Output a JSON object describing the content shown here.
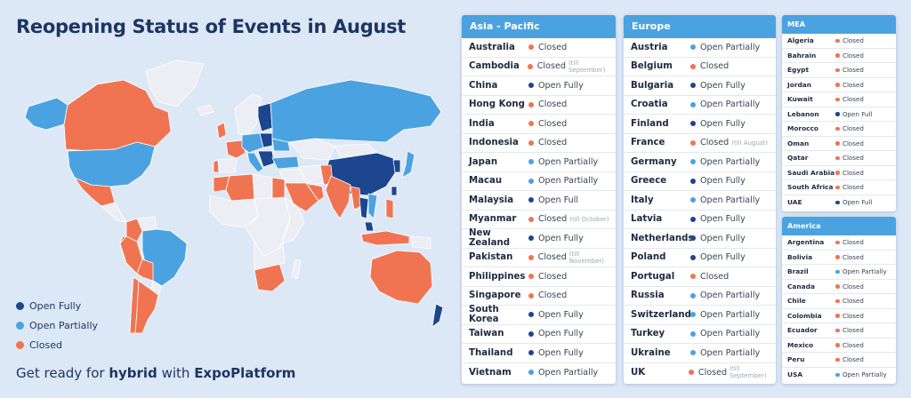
{
  "title": "Reopening Status of Events in August",
  "footer": {
    "prefix": "Get ready for ",
    "bold1": "hybrid",
    "middle": " with ",
    "bold2": "ExpoPlatform"
  },
  "colors": {
    "open_fully": "#1c468d",
    "open_partially": "#4aa3e0",
    "closed": "#f07451",
    "no_data": "#eceef3",
    "background": "#dde8f7"
  },
  "legend": [
    {
      "label": "Open Fully",
      "status": "open_fully"
    },
    {
      "label": "Open Partially",
      "status": "open_partially"
    },
    {
      "label": "Closed",
      "status": "closed"
    }
  ],
  "panels": [
    {
      "id": "asia",
      "title": "Asia - Pacific",
      "size": "big",
      "rows": [
        {
          "country": "Australia",
          "status": "closed",
          "text": "Closed",
          "note": ""
        },
        {
          "country": "Cambodia",
          "status": "closed",
          "text": "Closed",
          "note": "(till September)"
        },
        {
          "country": "China",
          "status": "open_fully",
          "text": "Open Fully",
          "note": ""
        },
        {
          "country": "Hong Kong",
          "status": "closed",
          "text": "Closed",
          "note": ""
        },
        {
          "country": "India",
          "status": "closed",
          "text": "Closed",
          "note": ""
        },
        {
          "country": "Indonesia",
          "status": "closed",
          "text": "Closed",
          "note": ""
        },
        {
          "country": "Japan",
          "status": "open_partially",
          "text": "Open Partially",
          "note": ""
        },
        {
          "country": "Macau",
          "status": "open_partially",
          "text": "Open Partially",
          "note": ""
        },
        {
          "country": "Malaysia",
          "status": "open_fully",
          "text": "Open Full",
          "note": ""
        },
        {
          "country": "Myanmar",
          "status": "closed",
          "text": "Closed",
          "note": "(till October)"
        },
        {
          "country": "New Zealand",
          "status": "open_fully",
          "text": "Open Fully",
          "note": ""
        },
        {
          "country": "Pakistan",
          "status": "closed",
          "text": "Closed",
          "note": "(till November)"
        },
        {
          "country": "Philippines",
          "status": "closed",
          "text": "Closed",
          "note": ""
        },
        {
          "country": "Singapore",
          "status": "closed",
          "text": "Closed",
          "note": ""
        },
        {
          "country": "South Korea",
          "status": "open_fully",
          "text": "Open Fully",
          "note": ""
        },
        {
          "country": "Taiwan",
          "status": "open_fully",
          "text": "Open Fully",
          "note": ""
        },
        {
          "country": "Thailand",
          "status": "open_fully",
          "text": "Open Fully",
          "note": ""
        },
        {
          "country": "Vietnam",
          "status": "open_partially",
          "text": "Open Partially",
          "note": ""
        }
      ]
    },
    {
      "id": "europe",
      "title": "Europe",
      "size": "big",
      "rows": [
        {
          "country": "Austria",
          "status": "open_partially",
          "text": "Open Partially",
          "note": ""
        },
        {
          "country": "Belgium",
          "status": "closed",
          "text": "Closed",
          "note": ""
        },
        {
          "country": "Bulgaria",
          "status": "open_fully",
          "text": "Open Fully",
          "note": ""
        },
        {
          "country": "Croatia",
          "status": "open_partially",
          "text": "Open Partially",
          "note": ""
        },
        {
          "country": "Finland",
          "status": "open_fully",
          "text": "Open Fully",
          "note": ""
        },
        {
          "country": "France",
          "status": "closed",
          "text": "Closed",
          "note": "(till August)"
        },
        {
          "country": "Germany",
          "status": "open_partially",
          "text": "Open Partially",
          "note": ""
        },
        {
          "country": "Greece",
          "status": "open_fully",
          "text": "Open Fully",
          "note": ""
        },
        {
          "country": "Italy",
          "status": "open_partially",
          "text": "Open Partially",
          "note": ""
        },
        {
          "country": "Latvia",
          "status": "open_fully",
          "text": "Open Fully",
          "note": ""
        },
        {
          "country": "Netherlands",
          "status": "open_fully",
          "text": "Open Fully",
          "note": ""
        },
        {
          "country": "Poland",
          "status": "open_fully",
          "text": "Open Fully",
          "note": ""
        },
        {
          "country": "Portugal",
          "status": "closed",
          "text": "Closed",
          "note": ""
        },
        {
          "country": "Russia",
          "status": "open_partially",
          "text": "Open Partially",
          "note": ""
        },
        {
          "country": "Switzerland",
          "status": "open_partially",
          "text": "Open Partially",
          "note": ""
        },
        {
          "country": "Turkey",
          "status": "open_partially",
          "text": "Open Partially",
          "note": ""
        },
        {
          "country": "Ukraine",
          "status": "open_partially",
          "text": "Open Partially",
          "note": ""
        },
        {
          "country": "UK",
          "status": "closed",
          "text": "Closed",
          "note": "(till September)"
        }
      ]
    },
    {
      "id": "mea",
      "title": "MEA",
      "size": "small",
      "rows": [
        {
          "country": "Algeria",
          "status": "closed",
          "text": "Closed",
          "note": ""
        },
        {
          "country": "Bahrain",
          "status": "closed",
          "text": "Closed",
          "note": ""
        },
        {
          "country": "Egypt",
          "status": "closed",
          "text": "Closed",
          "note": ""
        },
        {
          "country": "Jordan",
          "status": "closed",
          "text": "Closed",
          "note": ""
        },
        {
          "country": "Kuwait",
          "status": "closed",
          "text": "Closed",
          "note": ""
        },
        {
          "country": "Lebanon",
          "status": "open_fully",
          "text": "Open Full",
          "note": ""
        },
        {
          "country": "Morocco",
          "status": "closed",
          "text": "Closed",
          "note": ""
        },
        {
          "country": "Oman",
          "status": "closed",
          "text": "Closed",
          "note": ""
        },
        {
          "country": "Qatar",
          "status": "closed",
          "text": "Closed",
          "note": ""
        },
        {
          "country": "Saudi Arabia",
          "status": "closed",
          "text": "Closed",
          "note": ""
        },
        {
          "country": "South Africa",
          "status": "closed",
          "text": "Closed",
          "note": ""
        },
        {
          "country": "UAE",
          "status": "open_fully",
          "text": "Open Full",
          "note": ""
        }
      ]
    },
    {
      "id": "america",
      "title": "America",
      "size": "small",
      "rows": [
        {
          "country": "Argentina",
          "status": "closed",
          "text": "Closed",
          "note": ""
        },
        {
          "country": "Bolivia",
          "status": "closed",
          "text": "Closed",
          "note": ""
        },
        {
          "country": "Brazil",
          "status": "open_partially",
          "text": "Open Partially",
          "note": ""
        },
        {
          "country": "Canada",
          "status": "closed",
          "text": "Closed",
          "note": ""
        },
        {
          "country": "Chile",
          "status": "closed",
          "text": "Closed",
          "note": ""
        },
        {
          "country": "Colombia",
          "status": "closed",
          "text": "Closed",
          "note": ""
        },
        {
          "country": "Ecuador",
          "status": "closed",
          "text": "Closed",
          "note": ""
        },
        {
          "country": "Mexico",
          "status": "closed",
          "text": "Closed",
          "note": ""
        },
        {
          "country": "Peru",
          "status": "closed",
          "text": "Closed",
          "note": ""
        },
        {
          "country": "USA",
          "status": "open_partially",
          "text": "Open Partially",
          "note": ""
        }
      ]
    }
  ],
  "map_regions": [
    {
      "name": "alaska",
      "status": "open_partially"
    },
    {
      "name": "canada",
      "status": "closed"
    },
    {
      "name": "greenland",
      "status": "no_data"
    },
    {
      "name": "usa",
      "status": "open_partially"
    },
    {
      "name": "mexico",
      "status": "closed"
    },
    {
      "name": "central-america",
      "status": "no_data"
    },
    {
      "name": "colombia",
      "status": "closed"
    },
    {
      "name": "venezuela",
      "status": "no_data"
    },
    {
      "name": "ecuador",
      "status": "closed"
    },
    {
      "name": "peru",
      "status": "closed"
    },
    {
      "name": "brazil",
      "status": "open_partially"
    },
    {
      "name": "bolivia",
      "status": "closed"
    },
    {
      "name": "paraguay",
      "status": "no_data"
    },
    {
      "name": "chile",
      "status": "closed"
    },
    {
      "name": "argentina",
      "status": "closed"
    },
    {
      "name": "iceland",
      "status": "no_data"
    },
    {
      "name": "uk",
      "status": "closed"
    },
    {
      "name": "portugal",
      "status": "closed"
    },
    {
      "name": "spain",
      "status": "no_data"
    },
    {
      "name": "france",
      "status": "closed"
    },
    {
      "name": "norway-sweden",
      "status": "no_data"
    },
    {
      "name": "finland",
      "status": "open_fully"
    },
    {
      "name": "central-europe",
      "status": "open_partially"
    },
    {
      "name": "poland",
      "status": "open_fully"
    },
    {
      "name": "italy",
      "status": "open_partially"
    },
    {
      "name": "balkans",
      "status": "open_fully"
    },
    {
      "name": "russia",
      "status": "open_partially"
    },
    {
      "name": "ukraine",
      "status": "open_partially"
    },
    {
      "name": "turkey",
      "status": "open_partially"
    },
    {
      "name": "kazakhstan",
      "status": "no_data"
    },
    {
      "name": "mongolia",
      "status": "no_data"
    },
    {
      "name": "china",
      "status": "open_fully"
    },
    {
      "name": "korea",
      "status": "open_fully"
    },
    {
      "name": "japan",
      "status": "open_partially"
    },
    {
      "name": "middle-east",
      "status": "no_data"
    },
    {
      "name": "saudi-arabia",
      "status": "closed"
    },
    {
      "name": "gulf-states",
      "status": "closed"
    },
    {
      "name": "iran",
      "status": "no_data"
    },
    {
      "name": "pakistan",
      "status": "closed"
    },
    {
      "name": "india",
      "status": "closed"
    },
    {
      "name": "myanmar",
      "status": "closed"
    },
    {
      "name": "thailand",
      "status": "open_fully"
    },
    {
      "name": "vietnam",
      "status": "open_partially"
    },
    {
      "name": "malaysia",
      "status": "open_fully"
    },
    {
      "name": "indonesia",
      "status": "closed"
    },
    {
      "name": "philippines",
      "status": "closed"
    },
    {
      "name": "taiwan",
      "status": "open_fully"
    },
    {
      "name": "papua",
      "status": "no_data"
    },
    {
      "name": "australia",
      "status": "closed"
    },
    {
      "name": "new-zealand",
      "status": "open_fully"
    },
    {
      "name": "morocco",
      "status": "closed"
    },
    {
      "name": "algeria",
      "status": "closed"
    },
    {
      "name": "libya",
      "status": "no_data"
    },
    {
      "name": "egypt",
      "status": "closed"
    },
    {
      "name": "west-africa",
      "status": "no_data"
    },
    {
      "name": "central-africa",
      "status": "no_data"
    },
    {
      "name": "east-africa",
      "status": "no_data"
    },
    {
      "name": "south-africa",
      "status": "closed"
    },
    {
      "name": "madagascar",
      "status": "no_data"
    }
  ]
}
